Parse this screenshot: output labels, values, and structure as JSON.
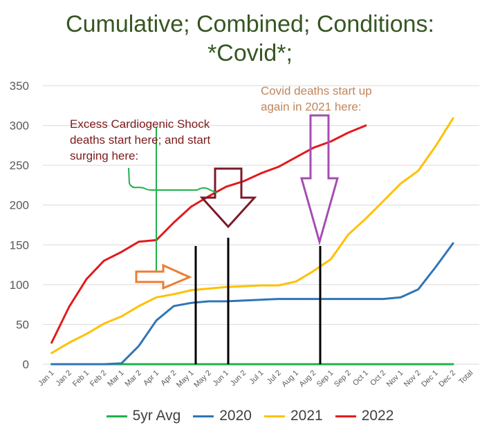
{
  "chart_data": {
    "type": "line",
    "title_lines": [
      "Cumulative; Combined; Conditions:",
      "*Covid*;"
    ],
    "x": [
      "Jan 1",
      "Jan 2",
      "Feb 1",
      "Feb 2",
      "Mar 1",
      "Mar 2",
      "Apr 1",
      "Apr 2",
      "May 1",
      "May 2",
      "Jun 1",
      "Jun 2",
      "Jul 1",
      "Jul 2",
      "Aug 1",
      "Aug 2",
      "Sep 1",
      "Sep 2",
      "Oct 1",
      "Oct 2",
      "Nov 1",
      "Nov 2",
      "Dec 1",
      "Dec 2",
      "Total"
    ],
    "y_ticks": [
      0,
      50,
      100,
      150,
      200,
      250,
      300,
      350
    ],
    "ylim": [
      0,
      350
    ],
    "grid": true,
    "legend_position": "bottom",
    "series": [
      {
        "name": "5yr Avg",
        "color": "#1FB14B",
        "values": [
          0,
          0,
          0,
          0,
          0,
          0,
          0,
          0,
          0,
          0,
          0,
          0,
          0,
          0,
          0,
          0,
          0,
          0,
          0,
          0,
          0,
          0,
          0,
          0,
          null
        ]
      },
      {
        "name": "2020",
        "color": "#2E75B6",
        "values": [
          0,
          0,
          0,
          0,
          1,
          23,
          55,
          73,
          77,
          79,
          79,
          80,
          81,
          82,
          82,
          82,
          82,
          82,
          82,
          82,
          84,
          94,
          122,
          152,
          null
        ]
      },
      {
        "name": "2021",
        "color": "#FFC000",
        "values": [
          14,
          27,
          38,
          51,
          60,
          73,
          84,
          88,
          93,
          95,
          97,
          98,
          99,
          99,
          104,
          117,
          132,
          163,
          183,
          205,
          227,
          243,
          274,
          309,
          null
        ]
      },
      {
        "name": "2022",
        "color": "#E31A1C",
        "values": [
          27,
          72,
          107,
          130,
          141,
          154,
          156,
          178,
          198,
          211,
          223,
          230,
          240,
          248,
          260,
          272,
          280,
          291,
          300,
          null,
          null,
          null,
          null,
          null,
          null
        ]
      }
    ],
    "annotations": {
      "covid_text": "Covid deaths start up again in 2021 here:",
      "shock_text": "Excess Cardiogenic Shock deaths start here; and start surging here:"
    }
  }
}
